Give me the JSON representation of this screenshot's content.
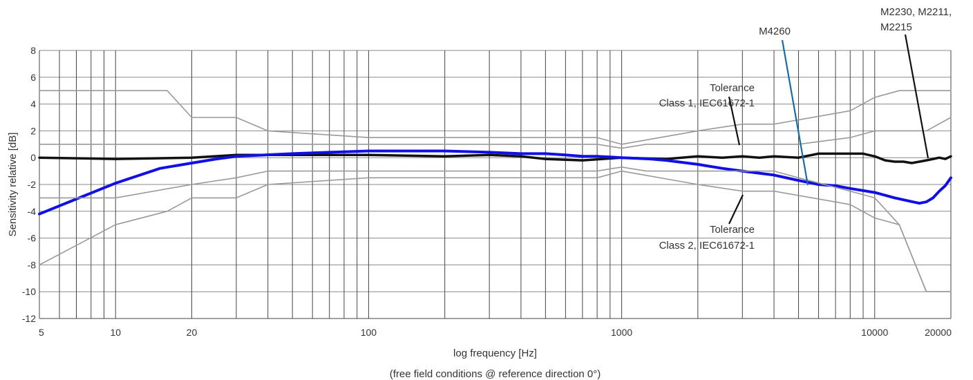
{
  "chart_data": {
    "type": "line",
    "xscale": "log",
    "xlabel": "log frequency [Hz]",
    "ylabel": "Sensitivity relative [dB]",
    "subtitle": "(free field conditions @ reference direction 0°)",
    "xlim": [
      5,
      20000
    ],
    "ylim": [
      -12,
      8
    ],
    "grid": true,
    "yticks": [
      8,
      6,
      4,
      2,
      0,
      -2,
      -4,
      -6,
      -8,
      -10,
      -12
    ],
    "ytick_labels": [
      "8",
      "6",
      "4",
      "2",
      "0",
      "-2",
      "-4",
      "-6",
      "-8",
      "-10",
      "-12"
    ],
    "xtick_labels": [
      {
        "value": 5,
        "label": "5"
      },
      {
        "value": 10,
        "label": "10"
      },
      {
        "value": 20,
        "label": "20"
      },
      {
        "value": 100,
        "label": "100"
      },
      {
        "value": 1000,
        "label": "1000"
      },
      {
        "value": 10000,
        "label": "10000"
      },
      {
        "value": 20000,
        "label": "20000"
      }
    ],
    "series": [
      {
        "name": "M2230, M2211, M2215",
        "color": "#111111",
        "x": [
          5,
          10,
          20,
          30,
          50,
          100,
          200,
          300,
          400,
          500,
          700,
          1000,
          1500,
          2000,
          2500,
          3000,
          3500,
          4000,
          5000,
          6000,
          7000,
          8000,
          9000,
          10000,
          11000,
          12000,
          13000,
          14000,
          15000,
          16000,
          17000,
          18000,
          19000,
          20000
        ],
        "y": [
          0,
          -0.1,
          0,
          0.2,
          0.2,
          0.2,
          0.1,
          0.2,
          0.1,
          -0.1,
          -0.2,
          0,
          -0.1,
          0.1,
          0.0,
          0.1,
          0,
          0.1,
          0,
          0.3,
          0.3,
          0.3,
          0.3,
          0.1,
          -0.2,
          -0.3,
          -0.3,
          -0.4,
          -0.3,
          -0.2,
          -0.1,
          0,
          -0.1,
          0.1
        ]
      },
      {
        "name": "M4260",
        "color": "#1010e6",
        "x": [
          5,
          10,
          15,
          20,
          25,
          30,
          50,
          70,
          100,
          150,
          200,
          300,
          400,
          500,
          600,
          700,
          800,
          1000,
          1300,
          1500,
          2000,
          2500,
          3000,
          4000,
          5000,
          6000,
          7000,
          8000,
          10000,
          12000,
          15000,
          16000,
          17000,
          18000,
          19000,
          20000
        ],
        "y": [
          -4.2,
          -1.9,
          -0.8,
          -0.4,
          -0.1,
          0.1,
          0.3,
          0.4,
          0.5,
          0.5,
          0.5,
          0.4,
          0.3,
          0.3,
          0.2,
          0.1,
          0.1,
          0.0,
          -0.1,
          -0.2,
          -0.5,
          -0.8,
          -1.0,
          -1.3,
          -1.7,
          -2.0,
          -2.1,
          -2.3,
          -2.6,
          -3.0,
          -3.4,
          -3.3,
          -3.0,
          -2.5,
          -2.1,
          -1.5
        ]
      },
      {
        "name": "Class 1 upper",
        "color": "#999999",
        "x": [
          5,
          10,
          20,
          30,
          40,
          100,
          800,
          1000,
          1250,
          2000,
          4000,
          5000,
          8000,
          10000,
          12500,
          16000,
          20000
        ],
        "y": [
          1,
          1,
          1,
          1,
          1,
          1,
          1,
          0.7,
          1,
          1,
          1,
          1,
          1.5,
          2,
          2,
          2,
          3
        ]
      },
      {
        "name": "Class 1 lower",
        "color": "#999999",
        "x": [
          5,
          10,
          20,
          30,
          40,
          100,
          800,
          1000,
          1250,
          2000,
          4000,
          5000,
          8000,
          10000,
          12500,
          16000,
          20000
        ],
        "y": [
          -3,
          -3,
          -2,
          -1.5,
          -1,
          -1,
          -1,
          -0.7,
          -1,
          -1,
          -1,
          -1.5,
          -2.5,
          -3,
          -5,
          -10,
          -10
        ]
      },
      {
        "name": "Class 2 upper",
        "color": "#999999",
        "x": [
          5,
          10,
          16,
          20,
          30,
          40,
          100,
          800,
          1000,
          2000,
          3000,
          4000,
          8000,
          10000,
          12500,
          16000,
          20000
        ],
        "y": [
          5,
          5,
          5,
          3,
          3,
          2,
          1.5,
          1.5,
          1,
          2,
          2.5,
          2.5,
          3.5,
          4.5,
          5,
          5,
          5
        ]
      },
      {
        "name": "Class 2 lower",
        "color": "#999999",
        "x": [
          5,
          10,
          16,
          20,
          30,
          40,
          100,
          800,
          1000,
          2000,
          3000,
          4000,
          8000,
          10000,
          12500,
          16000,
          20000
        ],
        "y": [
          -8,
          -5,
          -4,
          -3,
          -3,
          -2,
          -1.5,
          -1.5,
          -1,
          -2,
          -2.5,
          -2.5,
          -3.5,
          -4.5,
          -5,
          -10,
          -10
        ]
      }
    ],
    "annotations": [
      {
        "key": "class1",
        "lines": [
          "Tolerance",
          "Class 1, IEC61672-1"
        ]
      },
      {
        "key": "class2",
        "lines": [
          "Tolerance",
          "Class 2, IEC61672-1"
        ]
      },
      {
        "key": "m4260",
        "lines": [
          "M4260"
        ]
      },
      {
        "key": "m2230",
        "lines": [
          "M2230, M2211,",
          "M2215"
        ]
      }
    ]
  }
}
